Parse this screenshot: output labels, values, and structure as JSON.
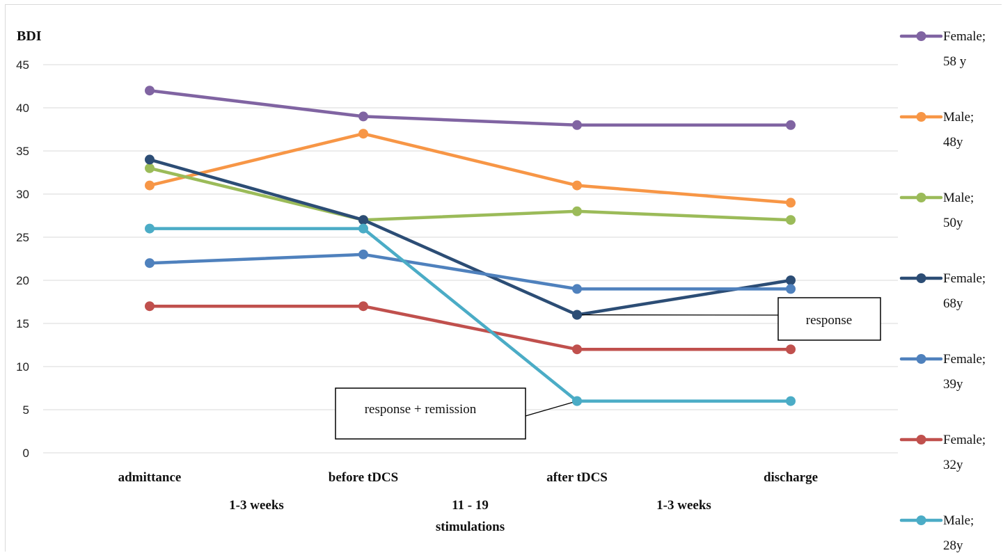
{
  "chart_data": {
    "type": "line",
    "ylabel": "BDI",
    "ylim": [
      0,
      45
    ],
    "yticks": [
      0,
      5,
      10,
      15,
      20,
      25,
      30,
      35,
      40,
      45
    ],
    "grid": true,
    "legend_position": "right",
    "categories": [
      "admittance",
      "before tDCS",
      "after tDCS",
      "discharge"
    ],
    "intervals": [
      {
        "text": [
          "1-3 weeks"
        ]
      },
      {
        "text": [
          "11 - 19",
          "stimulations"
        ]
      },
      {
        "text": [
          "1-3 weeks"
        ]
      }
    ],
    "series": [
      {
        "name": [
          "Female;",
          "58 y"
        ],
        "color": "#8064a2",
        "values": [
          42,
          39,
          38,
          38
        ]
      },
      {
        "name": [
          "Male;",
          "48y"
        ],
        "color": "#f79646",
        "values": [
          31,
          37,
          31,
          29
        ]
      },
      {
        "name": [
          "Male;",
          "50y"
        ],
        "color": "#9bbb59",
        "values": [
          33,
          27,
          28,
          27
        ]
      },
      {
        "name": [
          "Female;",
          "68y"
        ],
        "color": "#2c4d75",
        "values": [
          34,
          27,
          16,
          20
        ]
      },
      {
        "name": [
          "Female;",
          "39y"
        ],
        "color": "#4f81bd",
        "values": [
          22,
          23,
          19,
          19
        ]
      },
      {
        "name": [
          "Female;",
          "32y"
        ],
        "color": "#c0504d",
        "values": [
          17,
          17,
          12,
          12
        ]
      },
      {
        "name": [
          "Male;",
          "28y"
        ],
        "color": "#4bacc6",
        "values": [
          26,
          26,
          6,
          6
        ]
      }
    ],
    "annotations": [
      {
        "text": "response",
        "series": 3,
        "point": 2
      },
      {
        "text": "response + remission",
        "series": 6,
        "point": 2
      }
    ]
  }
}
